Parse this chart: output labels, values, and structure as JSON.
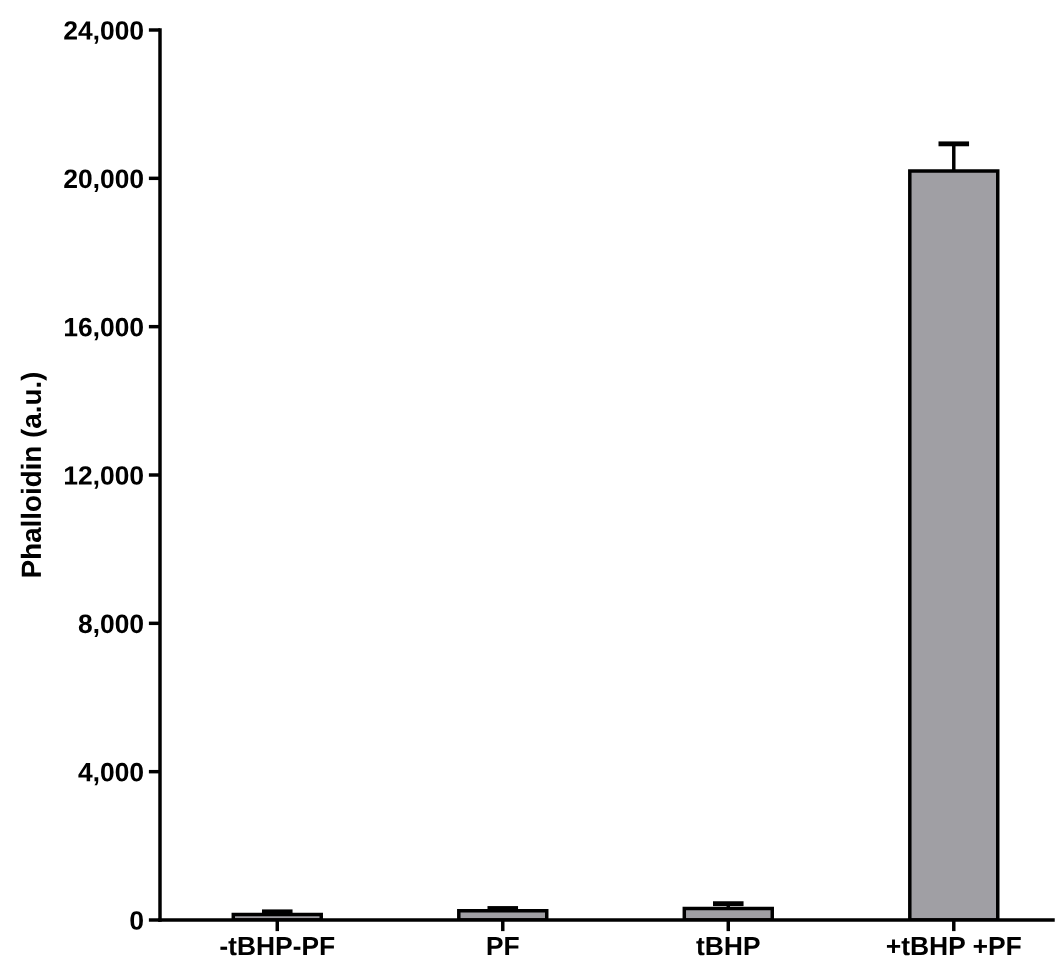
{
  "chart_data": {
    "type": "bar",
    "ylabel": "Phalloidin (a.u.)",
    "categories": [
      "-tBHP-PF",
      "PF",
      "tBHP",
      "+tBHP +PF"
    ],
    "values": [
      150,
      250,
      310,
      20200
    ],
    "errors": [
      70,
      60,
      130,
      730
    ],
    "color": "#a09fa4",
    "ylim": [
      0,
      24000
    ],
    "yticks": [
      0,
      {
        "value": 4000,
        "label": "4,000"
      },
      {
        "value": 8000,
        "label": "8,000"
      },
      {
        "value": 12000,
        "label": "12,000"
      },
      {
        "value": 16000,
        "label": "16,000"
      },
      {
        "value": 20000,
        "label": "20,000"
      },
      {
        "value": 24000,
        "label": "24,000"
      }
    ],
    "grid": false
  }
}
